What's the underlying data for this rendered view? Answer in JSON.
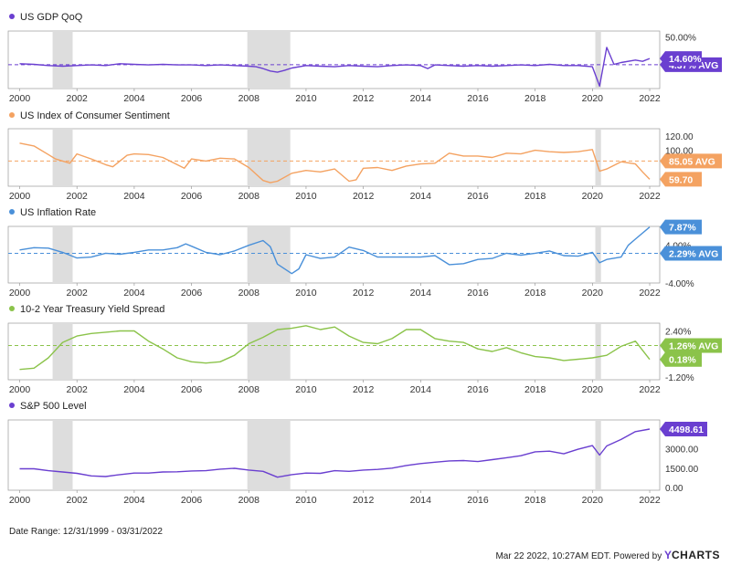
{
  "footer": {
    "date_range": "Date Range: 12/31/1999 - 03/31/2022",
    "timestamp": "Mar 22 2022, 10:27AM EDT. Powered by",
    "brand_y": "Y",
    "brand_rest": "CHARTS"
  },
  "recessions": [
    [
      2001.15,
      2001.85
    ],
    [
      2007.95,
      2009.45
    ],
    [
      2020.1,
      2020.3
    ]
  ],
  "x_ticks": [
    "2000",
    "2002",
    "2004",
    "2006",
    "2008",
    "2010",
    "2012",
    "2014",
    "2016",
    "2018",
    "2020",
    "2022"
  ],
  "x_tick_values": [
    2000,
    2002,
    2004,
    2006,
    2008,
    2010,
    2012,
    2014,
    2016,
    2018,
    2020,
    2022
  ],
  "chart_data": [
    {
      "type": "line",
      "title": "US GDP QoQ",
      "color": "#6a3fd0",
      "ylim": [
        -35,
        60
      ],
      "yticks": [
        "50.00%"
      ],
      "ytick_values": [
        50
      ],
      "avg": 4.37,
      "avg_label": "4.37% AVG",
      "last_label": "14.60%",
      "last_value": 14.6,
      "x": [
        2000,
        2000.5,
        2001,
        2001.5,
        2002,
        2002.5,
        2003,
        2003.5,
        2004,
        2004.5,
        2005,
        2005.5,
        2006,
        2006.5,
        2007,
        2007.5,
        2008,
        2008.25,
        2008.5,
        2008.75,
        2009,
        2009.25,
        2009.5,
        2010,
        2010.5,
        2011,
        2011.5,
        2012,
        2012.5,
        2013,
        2013.5,
        2014,
        2014.25,
        2014.5,
        2015,
        2015.5,
        2016,
        2016.5,
        2017,
        2017.5,
        2018,
        2018.5,
        2019,
        2019.5,
        2020,
        2020.25,
        2020.5,
        2020.75,
        2021,
        2021.5,
        2021.75,
        2022
      ],
      "y": [
        6,
        5,
        3,
        2,
        3,
        4,
        3,
        6,
        5,
        4,
        5,
        4,
        4,
        3,
        4,
        3,
        2,
        1,
        -2,
        -6,
        -8,
        -5,
        -1,
        3,
        2,
        1,
        3,
        2,
        1,
        3,
        4,
        3,
        -2,
        4,
        3,
        2,
        3,
        2,
        3,
        4,
        3,
        5,
        3,
        3,
        1,
        -31,
        33,
        5,
        8,
        12,
        10,
        14.6
      ]
    },
    {
      "type": "line",
      "title": "US Index of Consumer Sentiment",
      "color": "#f4a261",
      "ylim": [
        50,
        130
      ],
      "yticks": [
        "120.00",
        "100.00"
      ],
      "ytick_values": [
        120,
        100
      ],
      "avg": 85.05,
      "avg_label": "85.05 AVG",
      "last_label": "59.70",
      "last_value": 59.7,
      "x": [
        2000,
        2000.5,
        2001,
        2001.25,
        2001.75,
        2002,
        2002.5,
        2003,
        2003.25,
        2003.75,
        2004,
        2004.5,
        2005,
        2005.75,
        2006,
        2006.5,
        2007,
        2007.5,
        2008,
        2008.25,
        2008.5,
        2008.75,
        2009,
        2009.5,
        2010,
        2010.5,
        2011,
        2011.5,
        2011.75,
        2012,
        2012.5,
        2013,
        2013.5,
        2014,
        2014.5,
        2015,
        2015.5,
        2016,
        2016.5,
        2017,
        2017.5,
        2018,
        2018.5,
        2019,
        2019.5,
        2020,
        2020.25,
        2020.5,
        2021,
        2021.5,
        2021.75,
        2022
      ],
      "y": [
        110,
        106,
        94,
        88,
        82,
        95,
        88,
        80,
        77,
        93,
        95,
        94,
        90,
        75,
        88,
        85,
        89,
        88,
        76,
        67,
        58,
        55,
        57,
        68,
        72,
        70,
        74,
        57,
        59,
        75,
        76,
        72,
        78,
        81,
        82,
        96,
        92,
        92,
        90,
        96,
        95,
        100,
        98,
        97,
        98,
        101,
        71,
        74,
        84,
        81,
        70,
        59.7
      ]
    },
    {
      "type": "line",
      "title": "US Inflation Rate",
      "color": "#4a90d9",
      "ylim": [
        -4,
        8
      ],
      "yticks": [
        "4.00%",
        "-4.00%"
      ],
      "ytick_values": [
        4,
        -4
      ],
      "avg": 2.29,
      "avg_label": "2.29% AVG",
      "last_label": "7.87%",
      "last_value": 7.87,
      "x": [
        2000,
        2000.5,
        2001,
        2001.5,
        2002,
        2002.5,
        2003,
        2003.5,
        2004,
        2004.5,
        2005,
        2005.5,
        2005.8,
        2006,
        2006.5,
        2007,
        2007.5,
        2008,
        2008.5,
        2008.75,
        2009,
        2009.5,
        2009.75,
        2010,
        2010.5,
        2011,
        2011.5,
        2012,
        2012.5,
        2013,
        2013.5,
        2014,
        2014.5,
        2015,
        2015.5,
        2016,
        2016.5,
        2017,
        2017.5,
        2018,
        2018.5,
        2019,
        2019.5,
        2020,
        2020.25,
        2020.5,
        2021,
        2021.25,
        2021.5,
        2022
      ],
      "y": [
        3,
        3.5,
        3.4,
        2.5,
        1.3,
        1.5,
        2.3,
        2.1,
        2.5,
        3,
        3,
        3.5,
        4.3,
        3.8,
        2.5,
        2,
        2.8,
        4,
        5,
        3.7,
        0,
        -2,
        -1,
        2,
        1.2,
        1.5,
        3.6,
        2.9,
        1.5,
        1.5,
        1.5,
        1.5,
        1.8,
        -0.1,
        0.1,
        1,
        1.2,
        2.3,
        1.9,
        2.3,
        2.8,
        1.8,
        1.7,
        2.5,
        0.3,
        1,
        1.5,
        4,
        5.3,
        7.87
      ]
    },
    {
      "type": "line",
      "title": "10-2 Year Treasury Yield Spread",
      "color": "#8bc34a",
      "ylim": [
        -1.4,
        3.0
      ],
      "yticks": [
        "2.40%",
        "-1.20%"
      ],
      "ytick_values": [
        2.4,
        -1.2
      ],
      "avg": 1.26,
      "avg_label": "1.26% AVG",
      "last_label": "0.18%",
      "last_value": 0.18,
      "x": [
        2000,
        2000.5,
        2001,
        2001.5,
        2002,
        2002.5,
        2003,
        2003.5,
        2004,
        2004.5,
        2005,
        2005.5,
        2006,
        2006.5,
        2007,
        2007.5,
        2008,
        2008.5,
        2009,
        2009.5,
        2010,
        2010.5,
        2011,
        2011.5,
        2012,
        2012.5,
        2013,
        2013.5,
        2014,
        2014.5,
        2015,
        2015.5,
        2016,
        2016.5,
        2017,
        2017.5,
        2018,
        2018.5,
        2019,
        2019.5,
        2020,
        2020.5,
        2021,
        2021.5,
        2022
      ],
      "y": [
        -0.6,
        -0.5,
        0.3,
        1.5,
        2.0,
        2.2,
        2.3,
        2.4,
        2.4,
        1.6,
        1.0,
        0.3,
        0,
        -0.1,
        0,
        0.5,
        1.4,
        1.9,
        2.5,
        2.6,
        2.8,
        2.5,
        2.7,
        2.0,
        1.5,
        1.4,
        1.8,
        2.5,
        2.5,
        1.8,
        1.6,
        1.5,
        1.0,
        0.8,
        1.1,
        0.7,
        0.4,
        0.3,
        0.1,
        0.2,
        0.3,
        0.5,
        1.2,
        1.6,
        0.18
      ]
    },
    {
      "type": "line",
      "title": "S&P 500 Level",
      "color": "#6a3fd0",
      "ylim": [
        -200,
        5200
      ],
      "yticks": [
        "3000.00",
        "1500.00",
        "0.00"
      ],
      "ytick_values": [
        3000,
        1500,
        0
      ],
      "avg": null,
      "avg_label": "",
      "last_label": "4498.61",
      "last_value": 4498.61,
      "x": [
        2000,
        2000.5,
        2001,
        2001.5,
        2002,
        2002.5,
        2003,
        2003.5,
        2004,
        2004.5,
        2005,
        2005.5,
        2006,
        2006.5,
        2007,
        2007.5,
        2008,
        2008.5,
        2009,
        2009.5,
        2010,
        2010.5,
        2011,
        2011.5,
        2012,
        2012.5,
        2013,
        2013.5,
        2014,
        2014.5,
        2015,
        2015.5,
        2016,
        2016.5,
        2017,
        2017.5,
        2018,
        2018.5,
        2019,
        2019.5,
        2020,
        2020.25,
        2020.5,
        2021,
        2021.5,
        2022
      ],
      "y": [
        1450,
        1450,
        1300,
        1200,
        1100,
        900,
        850,
        1000,
        1120,
        1120,
        1200,
        1220,
        1280,
        1300,
        1420,
        1480,
        1350,
        1250,
        800,
        1000,
        1120,
        1100,
        1300,
        1250,
        1350,
        1400,
        1500,
        1700,
        1850,
        1950,
        2050,
        2080,
        2000,
        2150,
        2300,
        2450,
        2750,
        2800,
        2600,
        2950,
        3230,
        2500,
        3200,
        3700,
        4300,
        4498.61
      ]
    }
  ]
}
